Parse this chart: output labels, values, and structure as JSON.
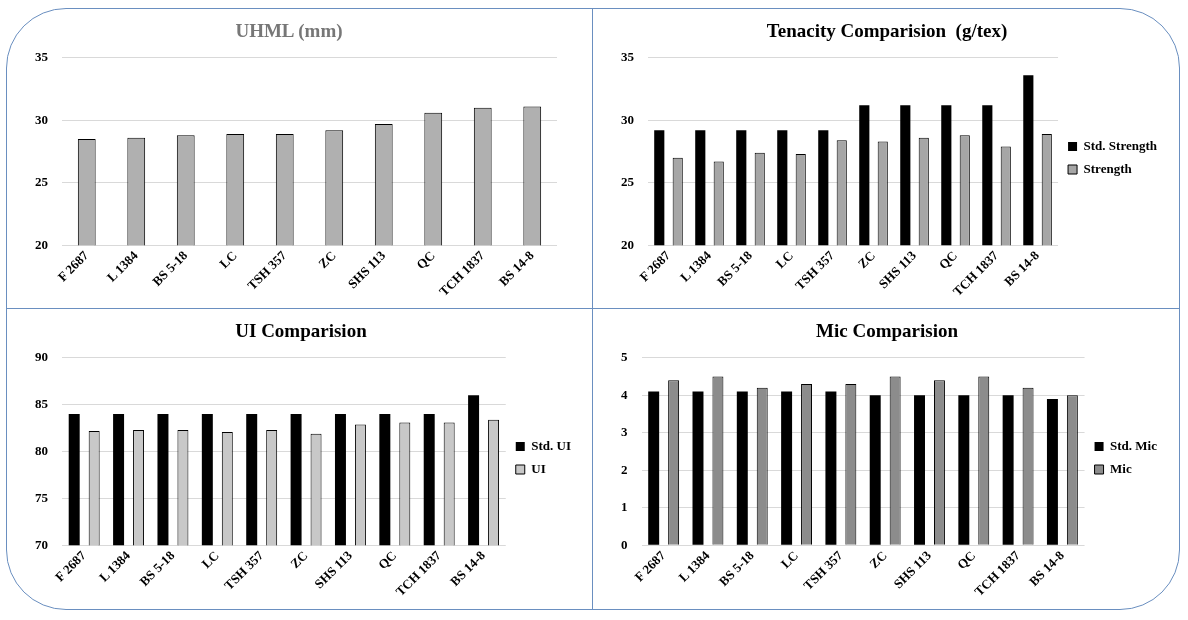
{
  "chart_data": [
    {
      "type": "bar",
      "title": "UHML (mm)",
      "categories": [
        "F 2687",
        "L 1384",
        "BS 5-18",
        "LC",
        "TSH 357",
        "ZC",
        "SHS 113",
        "QC",
        "TCH 1837",
        "BS 14-8"
      ],
      "values": [
        28.5,
        28.6,
        28.8,
        28.9,
        28.9,
        29.2,
        29.7,
        30.6,
        31.0,
        31.1
      ],
      "color": "#b0b0b0",
      "ylim": [
        20,
        35
      ],
      "yticks": [
        20,
        25,
        30,
        35
      ],
      "grid": "y"
    },
    {
      "type": "bar",
      "title": "Tenacity Comparision  (g/tex)",
      "categories": [
        "F 2687",
        "L 1384",
        "BS 5-18",
        "LC",
        "TSH 357",
        "ZC",
        "SHS 113",
        "QC",
        "TCH 1837",
        "BS 14-8"
      ],
      "series": [
        {
          "name": "Std. Strength",
          "color": "#000000",
          "values": [
            29.2,
            29.2,
            29.2,
            29.2,
            29.2,
            31.2,
            31.2,
            31.2,
            31.2,
            33.6
          ]
        },
        {
          "name": "Strength",
          "color": "#a6a6a6",
          "values": [
            27.0,
            26.7,
            27.4,
            27.3,
            28.4,
            28.3,
            28.6,
            28.8,
            27.9,
            28.9
          ]
        }
      ],
      "ylim": [
        20,
        35
      ],
      "yticks": [
        20,
        25,
        30,
        35
      ],
      "grid": "y",
      "legend": "right"
    },
    {
      "type": "bar",
      "title": "UI Comparision",
      "categories": [
        "F 2687",
        "L 1384",
        "BS 5-18",
        "LC",
        "TSH 357",
        "ZC",
        "SHS 113",
        "QC",
        "TCH 1837",
        "BS 14-8"
      ],
      "series": [
        {
          "name": "Std. UI",
          "color": "#000000",
          "values": [
            84,
            84,
            84,
            84,
            84,
            84,
            84,
            84,
            84,
            86
          ]
        },
        {
          "name": "UI",
          "color": "#c8c8c8",
          "values": [
            82.2,
            82.3,
            82.3,
            82.1,
            82.3,
            81.9,
            82.9,
            83.1,
            83.1,
            83.4
          ]
        }
      ],
      "ylim": [
        70,
        90
      ],
      "yticks": [
        70,
        75,
        80,
        85,
        90
      ],
      "grid": "y",
      "legend": "right"
    },
    {
      "type": "bar",
      "title": "Mic Comparision",
      "categories": [
        "F 2687",
        "L 1384",
        "BS 5-18",
        "LC",
        "TSH 357",
        "ZC",
        "SHS 113",
        "QC",
        "TCH 1837",
        "BS 14-8"
      ],
      "series": [
        {
          "name": "Std. Mic",
          "color": "#000000",
          "values": [
            4.1,
            4.1,
            4.1,
            4.1,
            4.1,
            4.0,
            4.0,
            4.0,
            4.0,
            3.9
          ]
        },
        {
          "name": "Mic",
          "color": "#8c8c8c",
          "values": [
            4.4,
            4.5,
            4.2,
            4.3,
            4.3,
            4.5,
            4.4,
            4.5,
            4.2,
            4.0
          ]
        }
      ],
      "ylim": [
        0,
        5
      ],
      "yticks": [
        0,
        1,
        2,
        3,
        4,
        5
      ],
      "grid": "y",
      "legend": "right"
    }
  ]
}
